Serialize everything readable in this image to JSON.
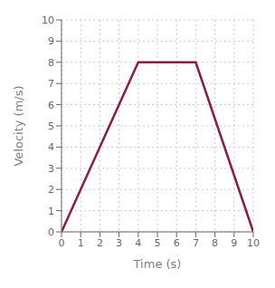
{
  "chart_data": {
    "type": "line",
    "x": [
      0,
      4,
      7,
      10
    ],
    "values": [
      0,
      8,
      8,
      0
    ],
    "color": "#8B1A4A",
    "xlabel": "Time (s)",
    "ylabel": "Velocity (m/s)",
    "xlim": [
      0,
      10
    ],
    "ylim": [
      0,
      10
    ],
    "xticks": [
      0,
      1,
      2,
      3,
      4,
      5,
      6,
      7,
      8,
      9,
      10
    ],
    "yticks": [
      0,
      1,
      2,
      3,
      4,
      5,
      6,
      7,
      8,
      9,
      10
    ],
    "grid": true
  }
}
